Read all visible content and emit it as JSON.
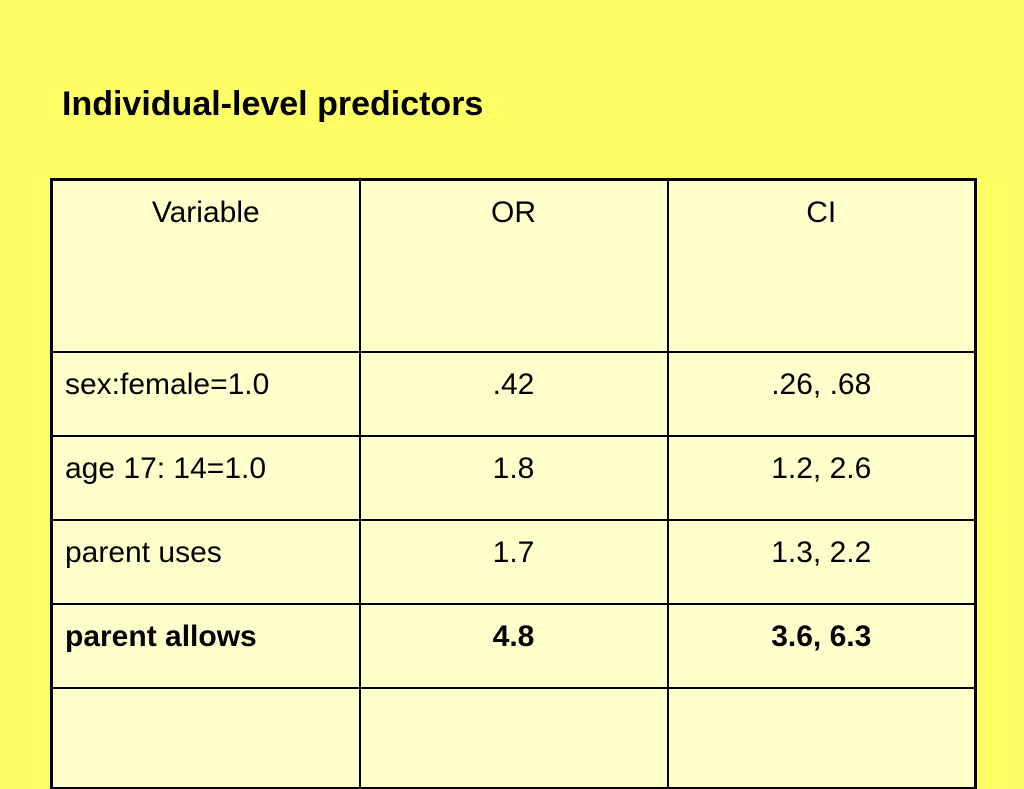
{
  "slide": {
    "title": "Individual-level predictors",
    "background_color": "#ffff66",
    "table_fill_color": "#ffffcc"
  },
  "table": {
    "headers": [
      "Variable",
      "OR",
      "CI"
    ],
    "rows": [
      {
        "variable": "sex:female=1.0",
        "or": ".42",
        "ci": ".26, .68",
        "bold": false
      },
      {
        "variable": "age 17: 14=1.0",
        "or": "1.8",
        "ci": "1.2, 2.6",
        "bold": false
      },
      {
        "variable": "parent uses",
        "or": "1.7",
        "ci": "1.3, 2.2",
        "bold": false
      },
      {
        "variable": "parent allows",
        "or": "4.8",
        "ci": "3.6, 6.3",
        "bold": true
      },
      {
        "variable": "",
        "or": "",
        "ci": "",
        "bold": false
      }
    ]
  }
}
